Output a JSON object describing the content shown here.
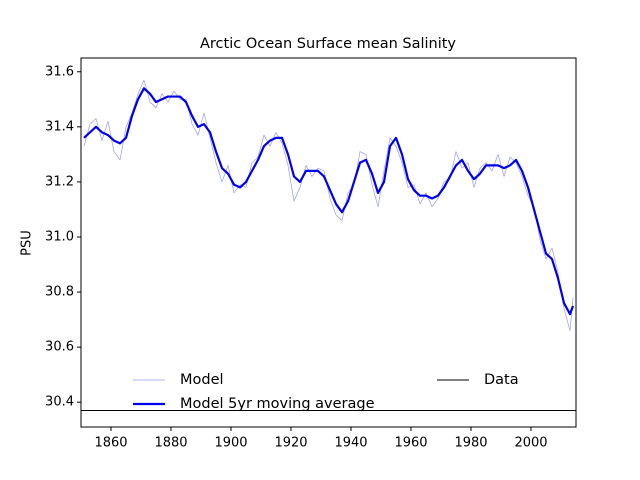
{
  "chart_data": {
    "type": "line",
    "title": "Arctic Ocean Surface mean Salinity",
    "y_label": "PSU",
    "xlim": [
      1850,
      2015
    ],
    "ylim": [
      30.31,
      31.65
    ],
    "xticks": [
      1860,
      1880,
      1900,
      1920,
      1940,
      1960,
      1980,
      2000
    ],
    "yticks": [
      30.4,
      30.6,
      30.8,
      {
        "value": 31,
        "label": "31.0"
      },
      31.2,
      31.4,
      31.6
    ],
    "legend": "lower center",
    "x": [
      1851,
      1853,
      1855,
      1857,
      1859,
      1861,
      1863,
      1865,
      1867,
      1869,
      1871,
      1873,
      1875,
      1877,
      1879,
      1881,
      1883,
      1885,
      1887,
      1889,
      1891,
      1893,
      1895,
      1897,
      1899,
      1901,
      1903,
      1905,
      1907,
      1909,
      1911,
      1913,
      1915,
      1917,
      1919,
      1921,
      1923,
      1925,
      1927,
      1929,
      1931,
      1933,
      1935,
      1937,
      1939,
      1941,
      1943,
      1945,
      1947,
      1949,
      1951,
      1953,
      1955,
      1957,
      1959,
      1961,
      1963,
      1965,
      1967,
      1969,
      1971,
      1973,
      1975,
      1977,
      1979,
      1981,
      1983,
      1985,
      1987,
      1989,
      1991,
      1993,
      1995,
      1997,
      1999,
      2001,
      2003,
      2005,
      2007,
      2009,
      2011,
      2013,
      2014
    ],
    "series": [
      {
        "name": "Model",
        "color": "#9a9af0",
        "width": 0.7,
        "values": [
          31.33,
          31.41,
          31.43,
          31.35,
          31.42,
          31.31,
          31.28,
          31.4,
          31.45,
          31.52,
          31.57,
          31.49,
          31.47,
          31.52,
          31.49,
          31.53,
          31.5,
          31.5,
          31.41,
          31.37,
          31.45,
          31.36,
          31.27,
          31.2,
          31.26,
          31.16,
          31.19,
          31.18,
          31.27,
          31.29,
          31.37,
          31.33,
          31.38,
          31.34,
          31.26,
          31.13,
          31.18,
          31.26,
          31.22,
          31.25,
          31.24,
          31.14,
          31.08,
          31.06,
          31.16,
          31.19,
          31.31,
          31.3,
          31.19,
          31.11,
          31.24,
          31.36,
          31.33,
          31.27,
          31.18,
          31.19,
          31.12,
          31.16,
          31.11,
          31.14,
          31.2,
          31.21,
          31.31,
          31.25,
          31.27,
          31.18,
          31.25,
          31.27,
          31.24,
          31.3,
          31.22,
          31.29,
          31.27,
          31.22,
          31.15,
          31.11,
          30.99,
          30.92,
          30.96,
          30.87,
          30.74,
          30.66,
          30.78
        ]
      },
      {
        "name": "Model 5yr moving average",
        "color": "#0000ee",
        "width": 2.2,
        "values": [
          31.36,
          31.38,
          31.4,
          31.38,
          31.37,
          31.35,
          31.34,
          31.36,
          31.44,
          31.5,
          31.54,
          31.52,
          31.49,
          31.5,
          31.51,
          31.51,
          31.51,
          31.49,
          31.44,
          31.4,
          31.41,
          31.38,
          31.31,
          31.25,
          31.23,
          31.19,
          31.18,
          31.2,
          31.24,
          31.28,
          31.33,
          31.35,
          31.36,
          31.36,
          31.3,
          31.22,
          31.2,
          31.24,
          31.24,
          31.24,
          31.22,
          31.17,
          31.12,
          31.09,
          31.13,
          31.2,
          31.27,
          31.28,
          31.23,
          31.16,
          31.2,
          31.33,
          31.36,
          31.3,
          31.21,
          31.17,
          31.15,
          31.15,
          31.14,
          31.15,
          31.18,
          31.22,
          31.26,
          31.28,
          31.24,
          31.21,
          31.23,
          31.26,
          31.26,
          31.26,
          31.25,
          31.26,
          31.28,
          31.24,
          31.18,
          31.1,
          31.02,
          30.94,
          30.92,
          30.85,
          30.76,
          30.72,
          30.75
        ]
      },
      {
        "name": "Data",
        "color": "#000000",
        "width": 1,
        "x": [
          1850,
          2015
        ],
        "values": [
          30.37,
          30.37
        ]
      }
    ]
  }
}
